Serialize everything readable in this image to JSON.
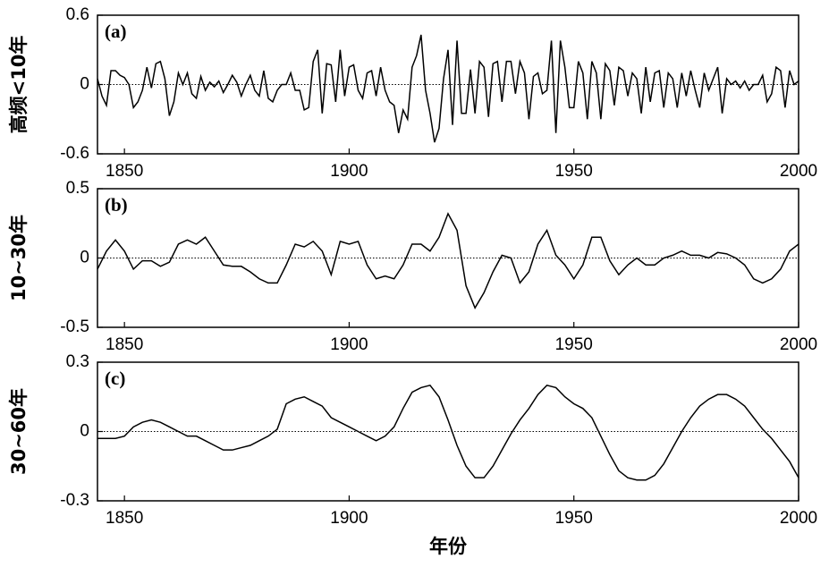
{
  "chart_data": [
    {
      "type": "line",
      "annotation": "(a)",
      "y_label": "高频<10年",
      "x": [
        1844,
        1845,
        1846,
        1847,
        1848,
        1849,
        1850,
        1851,
        1852,
        1853,
        1854,
        1855,
        1856,
        1857,
        1858,
        1859,
        1860,
        1861,
        1862,
        1863,
        1864,
        1865,
        1866,
        1867,
        1868,
        1869,
        1870,
        1871,
        1872,
        1873,
        1874,
        1875,
        1876,
        1877,
        1878,
        1879,
        1880,
        1881,
        1882,
        1883,
        1884,
        1885,
        1886,
        1887,
        1888,
        1889,
        1890,
        1891,
        1892,
        1893,
        1894,
        1895,
        1896,
        1897,
        1898,
        1899,
        1900,
        1901,
        1902,
        1903,
        1904,
        1905,
        1906,
        1907,
        1908,
        1909,
        1910,
        1911,
        1912,
        1913,
        1914,
        1915,
        1916,
        1917,
        1918,
        1919,
        1920,
        1921,
        1922,
        1923,
        1924,
        1925,
        1926,
        1927,
        1928,
        1929,
        1930,
        1931,
        1932,
        1933,
        1934,
        1935,
        1936,
        1937,
        1938,
        1939,
        1940,
        1941,
        1942,
        1943,
        1944,
        1945,
        1946,
        1947,
        1948,
        1949,
        1950,
        1951,
        1952,
        1953,
        1954,
        1955,
        1956,
        1957,
        1958,
        1959,
        1960,
        1961,
        1962,
        1963,
        1964,
        1965,
        1966,
        1967,
        1968,
        1969,
        1970,
        1971,
        1972,
        1973,
        1974,
        1975,
        1976,
        1977,
        1978,
        1979,
        1980,
        1981,
        1982,
        1983,
        1984,
        1985,
        1986,
        1987,
        1988,
        1989,
        1990,
        1991,
        1992,
        1993,
        1994,
        1995,
        1996,
        1997,
        1998,
        1999,
        2000
      ],
      "values": [
        0.05,
        -0.1,
        -0.18,
        0.12,
        0.12,
        0.08,
        0.06,
        0.0,
        -0.2,
        -0.15,
        -0.05,
        0.15,
        -0.03,
        0.18,
        0.2,
        0.05,
        -0.27,
        -0.15,
        0.1,
        0.0,
        0.1,
        -0.08,
        -0.12,
        0.07,
        -0.05,
        0.02,
        -0.02,
        0.03,
        -0.07,
        0.0,
        0.08,
        0.02,
        -0.1,
        0.0,
        0.08,
        -0.05,
        -0.1,
        0.12,
        -0.12,
        -0.15,
        -0.05,
        0.0,
        0.0,
        0.1,
        -0.05,
        -0.05,
        -0.22,
        -0.2,
        0.2,
        0.3,
        -0.25,
        0.18,
        0.17,
        -0.15,
        0.3,
        -0.1,
        0.15,
        0.17,
        -0.05,
        -0.12,
        0.1,
        0.12,
        -0.1,
        0.15,
        -0.05,
        -0.15,
        -0.18,
        -0.42,
        -0.22,
        -0.3,
        0.15,
        0.25,
        0.43,
        -0.05,
        -0.25,
        -0.5,
        -0.38,
        0.05,
        0.3,
        -0.35,
        0.38,
        -0.25,
        -0.25,
        0.13,
        -0.25,
        0.2,
        0.15,
        -0.28,
        0.18,
        0.2,
        -0.15,
        0.2,
        0.2,
        -0.08,
        0.2,
        0.1,
        -0.3,
        0.07,
        0.1,
        -0.08,
        -0.05,
        0.38,
        -0.42,
        0.38,
        0.15,
        -0.2,
        -0.2,
        0.2,
        0.1,
        -0.3,
        0.2,
        0.1,
        -0.3,
        0.18,
        0.12,
        -0.18,
        0.15,
        0.12,
        -0.1,
        0.1,
        0.05,
        -0.25,
        0.15,
        -0.15,
        0.1,
        0.12,
        -0.2,
        0.1,
        0.05,
        -0.2,
        0.1,
        -0.1,
        0.12,
        -0.05,
        -0.2,
        0.1,
        -0.05,
        0.05,
        0.15,
        -0.25,
        0.05,
        0.0,
        0.03,
        -0.03,
        0.03,
        -0.05,
        0.0,
        0.0,
        0.08,
        -0.15,
        -0.08,
        0.15,
        0.12,
        -0.2,
        0.12,
        0.0,
        0.03
      ],
      "color": "#000000",
      "xlim": [
        1844,
        2000
      ],
      "ylim": [
        -0.6,
        0.6
      ],
      "xticks": [
        1850,
        1900,
        1950,
        2000
      ],
      "yticks": [
        -0.6,
        0,
        0.6
      ]
    },
    {
      "type": "line",
      "annotation": "(b)",
      "y_label": "10~30年",
      "x": [
        1844,
        1846,
        1848,
        1850,
        1852,
        1854,
        1856,
        1858,
        1860,
        1862,
        1864,
        1866,
        1868,
        1870,
        1872,
        1874,
        1876,
        1878,
        1880,
        1882,
        1884,
        1886,
        1888,
        1890,
        1892,
        1894,
        1896,
        1898,
        1900,
        1902,
        1904,
        1906,
        1908,
        1910,
        1912,
        1914,
        1916,
        1918,
        1920,
        1922,
        1924,
        1926,
        1928,
        1930,
        1932,
        1934,
        1936,
        1938,
        1940,
        1942,
        1944,
        1946,
        1948,
        1950,
        1952,
        1954,
        1956,
        1958,
        1960,
        1962,
        1964,
        1966,
        1968,
        1970,
        1972,
        1974,
        1976,
        1978,
        1980,
        1982,
        1984,
        1986,
        1988,
        1990,
        1992,
        1994,
        1996,
        1998,
        2000
      ],
      "values": [
        -0.08,
        0.05,
        0.13,
        0.05,
        -0.08,
        -0.02,
        -0.02,
        -0.06,
        -0.03,
        0.1,
        0.13,
        0.1,
        0.15,
        0.05,
        -0.05,
        -0.06,
        -0.06,
        -0.1,
        -0.15,
        -0.18,
        -0.18,
        -0.05,
        0.1,
        0.08,
        0.12,
        0.05,
        -0.12,
        0.12,
        0.1,
        0.12,
        -0.05,
        -0.15,
        -0.13,
        -0.15,
        -0.05,
        0.1,
        0.1,
        0.05,
        0.15,
        0.32,
        0.2,
        -0.2,
        -0.36,
        -0.25,
        -0.1,
        0.02,
        0.0,
        -0.18,
        -0.1,
        0.1,
        0.2,
        0.02,
        -0.05,
        -0.15,
        -0.05,
        0.15,
        0.15,
        -0.02,
        -0.12,
        -0.05,
        0.0,
        -0.05,
        -0.05,
        0.0,
        0.02,
        0.05,
        0.02,
        0.02,
        0.0,
        0.04,
        0.03,
        0.0,
        -0.05,
        -0.15,
        -0.18,
        -0.15,
        -0.08,
        0.05,
        0.1
      ],
      "color": "#000000",
      "xlim": [
        1844,
        2000
      ],
      "ylim": [
        -0.5,
        0.5
      ],
      "xticks": [
        1850,
        1900,
        1950,
        2000
      ],
      "yticks": [
        -0.5,
        0,
        0.5
      ]
    },
    {
      "type": "line",
      "annotation": "(c)",
      "y_label": "30~60年",
      "x_label": "年份",
      "x": [
        1844,
        1846,
        1848,
        1850,
        1852,
        1854,
        1856,
        1858,
        1860,
        1862,
        1864,
        1866,
        1868,
        1870,
        1872,
        1874,
        1876,
        1878,
        1880,
        1882,
        1884,
        1886,
        1888,
        1890,
        1892,
        1894,
        1896,
        1898,
        1900,
        1902,
        1904,
        1906,
        1908,
        1910,
        1912,
        1914,
        1916,
        1918,
        1920,
        1922,
        1924,
        1926,
        1928,
        1930,
        1932,
        1934,
        1936,
        1938,
        1940,
        1942,
        1944,
        1946,
        1948,
        1950,
        1952,
        1954,
        1956,
        1958,
        1960,
        1962,
        1964,
        1966,
        1968,
        1970,
        1972,
        1974,
        1976,
        1978,
        1980,
        1982,
        1984,
        1986,
        1988,
        1990,
        1992,
        1994,
        1996,
        1998,
        2000
      ],
      "values": [
        -0.03,
        -0.03,
        -0.03,
        -0.02,
        0.02,
        0.04,
        0.05,
        0.04,
        0.02,
        0.0,
        -0.02,
        -0.02,
        -0.04,
        -0.06,
        -0.08,
        -0.08,
        -0.07,
        -0.06,
        -0.04,
        -0.02,
        0.01,
        0.12,
        0.14,
        0.15,
        0.13,
        0.11,
        0.06,
        0.04,
        0.02,
        0.0,
        -0.02,
        -0.04,
        -0.02,
        0.02,
        0.1,
        0.17,
        0.19,
        0.2,
        0.15,
        0.05,
        -0.06,
        -0.15,
        -0.2,
        -0.2,
        -0.15,
        -0.08,
        -0.01,
        0.05,
        0.1,
        0.16,
        0.2,
        0.19,
        0.15,
        0.12,
        0.1,
        0.06,
        -0.02,
        -0.1,
        -0.17,
        -0.2,
        -0.21,
        -0.21,
        -0.19,
        -0.14,
        -0.07,
        0.0,
        0.06,
        0.11,
        0.14,
        0.16,
        0.16,
        0.14,
        0.11,
        0.06,
        0.01,
        -0.03,
        -0.08,
        -0.13,
        -0.2
      ],
      "color": "#000000",
      "xlim": [
        1844,
        2000
      ],
      "ylim": [
        -0.3,
        0.3
      ],
      "xticks": [
        1850,
        1900,
        1950,
        2000
      ],
      "yticks": [
        -0.3,
        0,
        0.3
      ]
    }
  ]
}
